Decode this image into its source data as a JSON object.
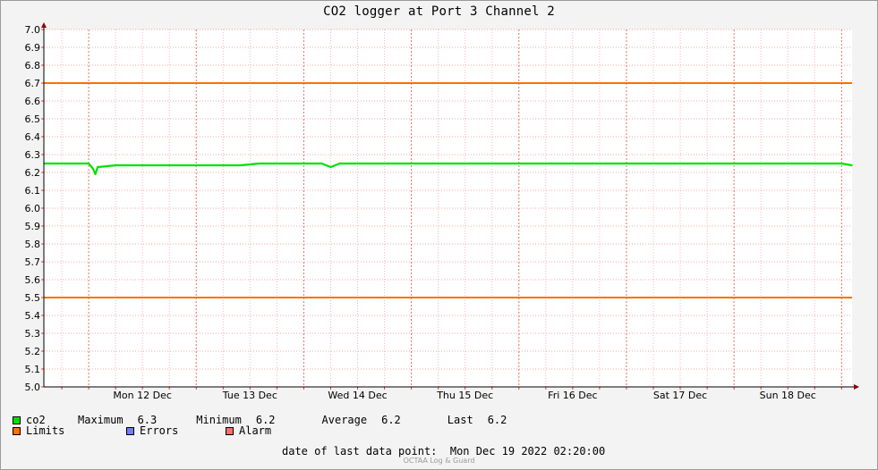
{
  "chart_data": {
    "type": "line",
    "title": "CO2 logger at Port 3 Channel 2",
    "xlabel": "",
    "ylabel": "",
    "ylim": [
      5.0,
      7.0
    ],
    "yticks": [
      "5.0",
      "5.1",
      "5.2",
      "5.3",
      "5.4",
      "5.5",
      "5.6",
      "5.7",
      "5.8",
      "5.9",
      "6.0",
      "6.1",
      "6.2",
      "6.3",
      "6.4",
      "6.5",
      "6.6",
      "6.7",
      "6.8",
      "6.9",
      "7.0"
    ],
    "xlim": [
      "2022-12-11 14:00",
      "2022-12-19 02:20"
    ],
    "xticks": [
      {
        "label": "Mon 12 Dec",
        "at": "2022-12-12 00:00"
      },
      {
        "label": "Tue 13 Dec",
        "at": "2022-12-13 00:00"
      },
      {
        "label": "Wed 14 Dec",
        "at": "2022-12-14 00:00"
      },
      {
        "label": "Thu 15 Dec",
        "at": "2022-12-15 00:00"
      },
      {
        "label": "Fri 16 Dec",
        "at": "2022-12-16 00:00"
      },
      {
        "label": "Sat 17 Dec",
        "at": "2022-12-17 00:00"
      },
      {
        "label": "Sun 18 Dec",
        "at": "2022-12-18 00:00"
      }
    ],
    "grid": true,
    "legend_placement": "bottom",
    "series": [
      {
        "name": "co2",
        "color": "#00e000",
        "points": [
          [
            "2022-12-11 14:00",
            6.25
          ],
          [
            "2022-12-11 18:00",
            6.25
          ],
          [
            "2022-12-11 22:00",
            6.25
          ],
          [
            "2022-12-12 00:00",
            6.25
          ],
          [
            "2022-12-12 01:00",
            6.22
          ],
          [
            "2022-12-12 01:30",
            6.19
          ],
          [
            "2022-12-12 02:00",
            6.23
          ],
          [
            "2022-12-12 06:00",
            6.24
          ],
          [
            "2022-12-12 12:00",
            6.24
          ],
          [
            "2022-12-12 18:00",
            6.24
          ],
          [
            "2022-12-13 00:00",
            6.24
          ],
          [
            "2022-12-13 06:00",
            6.24
          ],
          [
            "2022-12-13 10:00",
            6.24
          ],
          [
            "2022-12-13 14:00",
            6.25
          ],
          [
            "2022-12-13 20:00",
            6.25
          ],
          [
            "2022-12-14 00:00",
            6.25
          ],
          [
            "2022-12-14 04:00",
            6.25
          ],
          [
            "2022-12-14 06:00",
            6.23
          ],
          [
            "2022-12-14 08:00",
            6.25
          ],
          [
            "2022-12-14 12:00",
            6.25
          ],
          [
            "2022-12-14 18:00",
            6.25
          ],
          [
            "2022-12-15 00:00",
            6.25
          ],
          [
            "2022-12-15 06:00",
            6.25
          ],
          [
            "2022-12-15 12:00",
            6.25
          ],
          [
            "2022-12-15 18:00",
            6.25
          ],
          [
            "2022-12-16 00:00",
            6.25
          ],
          [
            "2022-12-16 06:00",
            6.25
          ],
          [
            "2022-12-16 12:00",
            6.25
          ],
          [
            "2022-12-16 18:00",
            6.25
          ],
          [
            "2022-12-17 00:00",
            6.25
          ],
          [
            "2022-12-17 06:00",
            6.25
          ],
          [
            "2022-12-17 12:00",
            6.25
          ],
          [
            "2022-12-17 18:00",
            6.25
          ],
          [
            "2022-12-18 00:00",
            6.25
          ],
          [
            "2022-12-18 06:00",
            6.25
          ],
          [
            "2022-12-18 12:00",
            6.25
          ],
          [
            "2022-12-18 18:00",
            6.25
          ],
          [
            "2022-12-19 00:00",
            6.25
          ],
          [
            "2022-12-19 02:20",
            6.24
          ]
        ]
      },
      {
        "name": "Limits",
        "color": "#ff7000",
        "lines": [
          6.7,
          5.5
        ]
      }
    ]
  },
  "legend": {
    "co2": {
      "label": "co2",
      "color": "#00e000"
    },
    "limits": {
      "label": "Limits",
      "color": "#ff7000"
    },
    "errors": {
      "label": "Errors",
      "color": "#6f7fff"
    },
    "alarm": {
      "label": "Alarm",
      "color": "#ff6f6f"
    },
    "stats": {
      "max_label": "Maximum",
      "max_value": "6.3",
      "min_label": "Minimum",
      "min_value": "6.2",
      "avg_label": "Average",
      "avg_value": "6.2",
      "last_label": "Last",
      "last_value": "6.2"
    }
  },
  "footer": {
    "last_point_label": "date of last data point:",
    "last_point_value": "Mon Dec 19 2022 02:20:00",
    "brand": "OCTAA Log & Guard"
  }
}
